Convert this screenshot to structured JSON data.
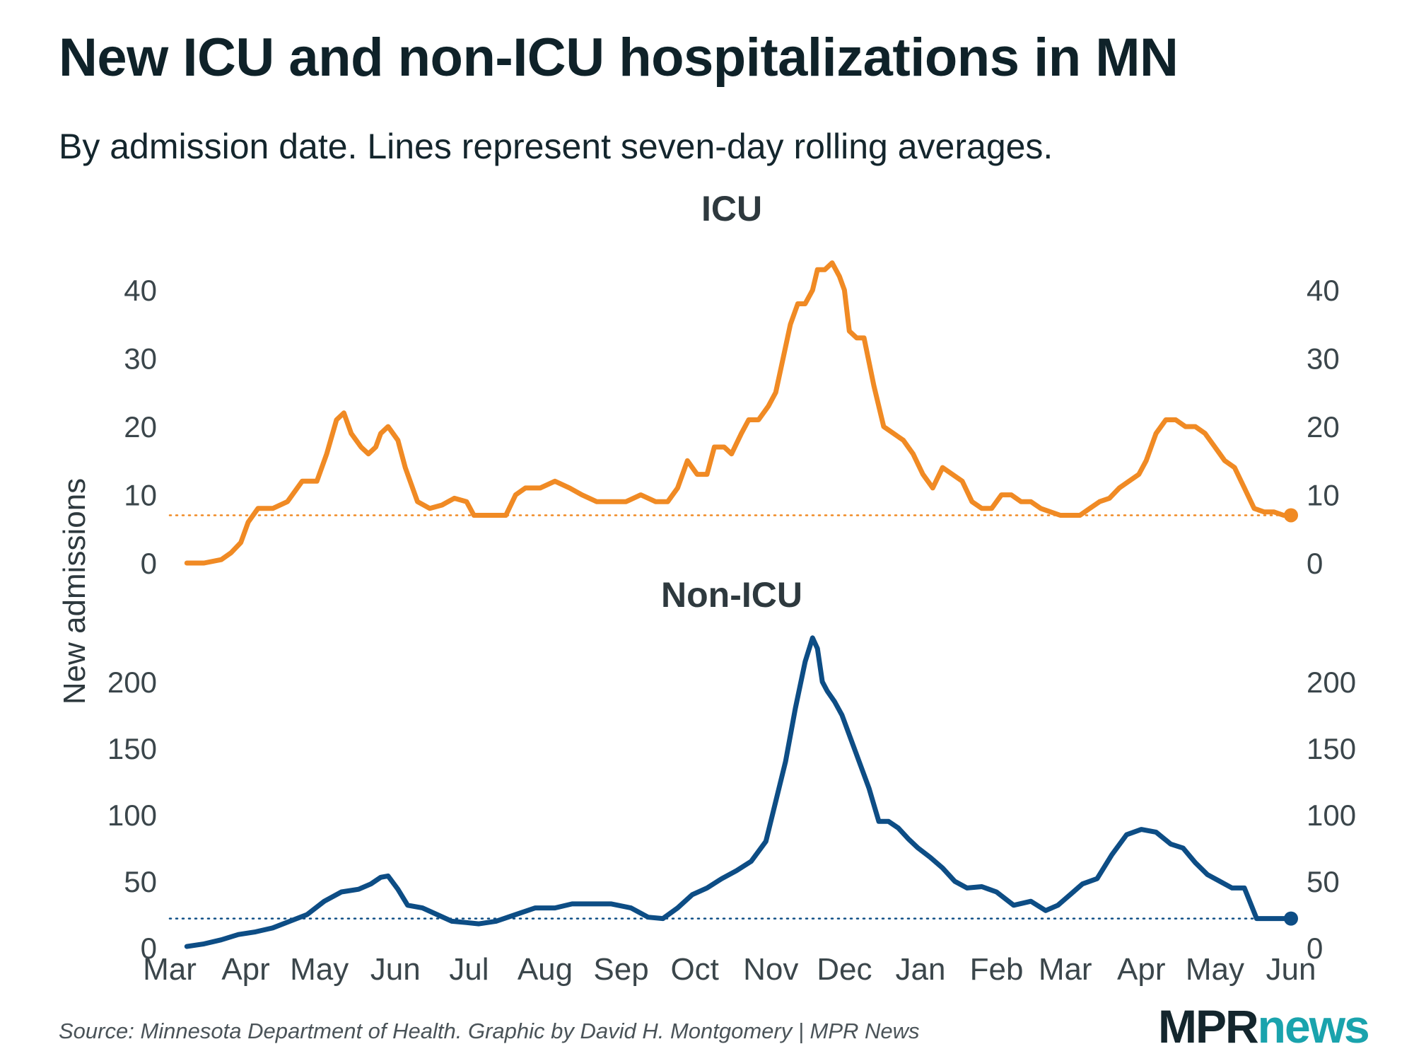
{
  "title": "New ICU and non-ICU hospitalizations in MN",
  "subtitle": "By admission date. Lines represent seven-day rolling averages.",
  "source": "Source: Minnesota Department of Health. Graphic by David H. Montgomery | MPR News",
  "logo": {
    "part1": "MPR",
    "part2": "news"
  },
  "colors": {
    "icu": "#f08a24",
    "nonicu": "#0d4d85",
    "text": "#14262d",
    "tick": "#3b464b"
  },
  "chart_data": [
    {
      "type": "line",
      "title": "ICU",
      "ylabel": "New admissions",
      "ylim": [
        0,
        45
      ],
      "yticks": [
        0,
        10,
        20,
        30,
        40
      ],
      "x_ticks": [
        "Mar",
        "Apr",
        "May",
        "Jun",
        "Jul",
        "Aug",
        "Sep",
        "Oct",
        "Nov",
        "Dec",
        "Jan",
        "Feb",
        "Mar",
        "Apr",
        "May",
        "Jun"
      ],
      "x_start": "2020-03-01",
      "reference_value": 7,
      "series": [
        {
          "x": [
            "2020-03-08",
            "2020-03-15",
            "2020-03-22",
            "2020-03-26",
            "2020-03-30",
            "2020-04-02",
            "2020-04-06",
            "2020-04-12",
            "2020-04-18",
            "2020-04-24",
            "2020-04-30",
            "2020-05-04",
            "2020-05-08",
            "2020-05-11",
            "2020-05-14",
            "2020-05-18",
            "2020-05-21",
            "2020-05-24",
            "2020-05-26",
            "2020-05-29",
            "2020-06-02",
            "2020-06-05",
            "2020-06-10",
            "2020-06-15",
            "2020-06-20",
            "2020-06-25",
            "2020-06-30",
            "2020-07-03",
            "2020-07-08",
            "2020-07-12",
            "2020-07-16",
            "2020-07-20",
            "2020-07-24",
            "2020-07-30",
            "2020-08-05",
            "2020-08-11",
            "2020-08-16",
            "2020-08-22",
            "2020-08-28",
            "2020-09-03",
            "2020-09-09",
            "2020-09-15",
            "2020-09-20",
            "2020-09-24",
            "2020-09-28",
            "2020-10-02",
            "2020-10-06",
            "2020-10-09",
            "2020-10-13",
            "2020-10-16",
            "2020-10-20",
            "2020-10-23",
            "2020-10-27",
            "2020-10-31",
            "2020-11-03",
            "2020-11-06",
            "2020-11-09",
            "2020-11-12",
            "2020-11-15",
            "2020-11-18",
            "2020-11-20",
            "2020-11-23",
            "2020-11-26",
            "2020-11-29",
            "2020-12-01",
            "2020-12-03",
            "2020-12-06",
            "2020-12-09",
            "2020-12-13",
            "2020-12-17",
            "2020-12-21",
            "2020-12-25",
            "2020-12-29",
            "2021-01-02",
            "2021-01-06",
            "2021-01-10",
            "2021-01-14",
            "2021-01-18",
            "2021-01-22",
            "2021-01-26",
            "2021-01-30",
            "2021-02-03",
            "2021-02-07",
            "2021-02-11",
            "2021-02-15",
            "2021-02-19",
            "2021-02-23",
            "2021-02-27",
            "2021-03-03",
            "2021-03-07",
            "2021-03-11",
            "2021-03-15",
            "2021-03-19",
            "2021-03-23",
            "2021-03-27",
            "2021-03-31",
            "2021-04-03",
            "2021-04-07",
            "2021-04-11",
            "2021-04-15",
            "2021-04-19",
            "2021-04-23",
            "2021-04-27",
            "2021-05-01",
            "2021-05-05",
            "2021-05-09",
            "2021-05-13",
            "2021-05-17",
            "2021-05-21",
            "2021-05-25",
            "2021-05-29",
            "2021-06-01"
          ],
          "y": [
            0,
            0,
            0.5,
            1.5,
            3,
            6,
            8,
            8,
            9,
            12,
            12,
            16,
            21,
            22,
            19,
            17,
            16,
            17,
            19,
            20,
            18,
            14,
            9,
            8,
            8.5,
            9.5,
            9,
            7,
            7,
            7,
            7,
            10,
            11,
            11,
            12,
            11,
            10,
            9,
            9,
            9,
            10,
            9,
            9,
            11,
            15,
            13,
            13,
            17,
            17,
            16,
            19,
            21,
            21,
            23,
            25,
            30,
            35,
            38,
            38,
            40,
            43,
            43,
            44,
            42,
            40,
            34,
            33,
            33,
            26,
            20,
            19,
            18,
            16,
            13,
            11,
            14,
            13,
            12,
            9,
            8,
            8,
            10,
            10,
            9,
            9,
            8,
            7.5,
            7,
            7,
            7,
            8,
            9,
            9.5,
            11,
            12,
            13,
            15,
            19,
            21,
            21,
            20,
            20,
            19,
            17,
            15,
            14,
            11,
            8,
            7.5,
            7.5,
            7,
            7
          ]
        }
      ]
    },
    {
      "type": "line",
      "title": "Non-ICU",
      "ylabel": "New admissions",
      "ylim": [
        0,
        235
      ],
      "yticks": [
        0,
        50,
        100,
        150,
        200
      ],
      "x_ticks": [
        "Mar",
        "Apr",
        "May",
        "Jun",
        "Jul",
        "Aug",
        "Sep",
        "Oct",
        "Nov",
        "Dec",
        "Jan",
        "Feb",
        "Mar",
        "Apr",
        "May",
        "Jun"
      ],
      "x_start": "2020-03-01",
      "reference_value": 22,
      "series": [
        {
          "x": [
            "2020-03-08",
            "2020-03-15",
            "2020-03-22",
            "2020-03-29",
            "2020-04-05",
            "2020-04-12",
            "2020-04-19",
            "2020-04-26",
            "2020-05-03",
            "2020-05-10",
            "2020-05-17",
            "2020-05-22",
            "2020-05-26",
            "2020-05-29",
            "2020-06-02",
            "2020-06-06",
            "2020-06-12",
            "2020-06-18",
            "2020-06-24",
            "2020-06-30",
            "2020-07-05",
            "2020-07-12",
            "2020-07-20",
            "2020-07-28",
            "2020-08-05",
            "2020-08-12",
            "2020-08-20",
            "2020-08-28",
            "2020-09-05",
            "2020-09-12",
            "2020-09-18",
            "2020-09-24",
            "2020-09-30",
            "2020-10-06",
            "2020-10-12",
            "2020-10-18",
            "2020-10-24",
            "2020-10-30",
            "2020-11-03",
            "2020-11-07",
            "2020-11-11",
            "2020-11-15",
            "2020-11-18",
            "2020-11-20",
            "2020-11-22",
            "2020-11-24",
            "2020-11-27",
            "2020-11-30",
            "2020-12-03",
            "2020-12-07",
            "2020-12-11",
            "2020-12-15",
            "2020-12-19",
            "2020-12-23",
            "2020-12-27",
            "2020-12-31",
            "2021-01-05",
            "2021-01-10",
            "2021-01-15",
            "2021-01-20",
            "2021-01-26",
            "2021-02-01",
            "2021-02-08",
            "2021-02-15",
            "2021-02-21",
            "2021-02-26",
            "2021-03-03",
            "2021-03-08",
            "2021-03-14",
            "2021-03-20",
            "2021-03-26",
            "2021-04-01",
            "2021-04-07",
            "2021-04-13",
            "2021-04-18",
            "2021-04-23",
            "2021-04-28",
            "2021-05-03",
            "2021-05-08",
            "2021-05-13",
            "2021-05-18",
            "2021-05-23",
            "2021-05-27",
            "2021-06-01"
          ],
          "y": [
            1,
            3,
            6,
            10,
            12,
            15,
            20,
            25,
            35,
            42,
            44,
            48,
            53,
            54,
            44,
            32,
            30,
            25,
            20,
            19,
            18,
            20,
            25,
            30,
            30,
            33,
            33,
            33,
            30,
            23,
            22,
            30,
            40,
            45,
            52,
            58,
            65,
            80,
            110,
            140,
            180,
            215,
            233,
            225,
            200,
            193,
            185,
            175,
            160,
            140,
            120,
            95,
            95,
            90,
            82,
            75,
            68,
            60,
            50,
            45,
            46,
            42,
            32,
            35,
            28,
            32,
            40,
            48,
            52,
            70,
            85,
            89,
            87,
            78,
            75,
            64,
            55,
            50,
            45,
            45,
            22,
            22,
            22,
            22
          ]
        }
      ]
    }
  ]
}
